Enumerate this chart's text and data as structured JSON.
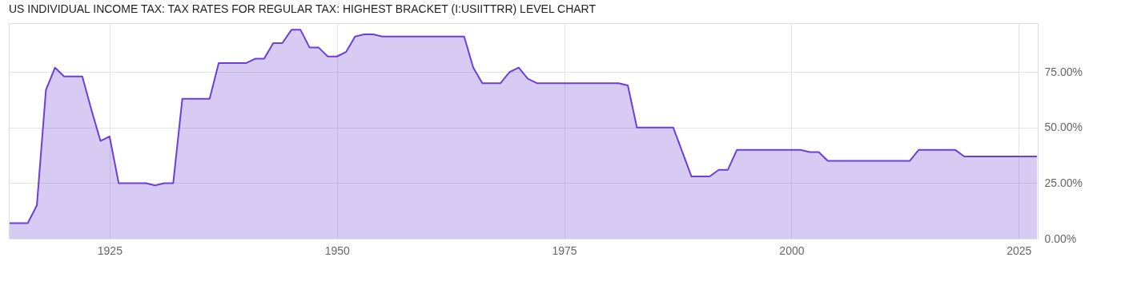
{
  "chart_data": {
    "type": "area",
    "title": "US INDIVIDUAL INCOME TAX: TAX RATES FOR REGULAR TAX: HIGHEST BRACKET (I:USIITTRR) LEVEL CHART",
    "x": [
      "1914",
      "1915",
      "1916",
      "1917",
      "1918",
      "1919",
      "1920",
      "1921",
      "1922",
      "1923",
      "1924",
      "1925",
      "1926",
      "1927",
      "1928",
      "1929",
      "1930",
      "1931",
      "1932",
      "1933",
      "1934",
      "1935",
      "1936",
      "1937",
      "1938",
      "1939",
      "1940",
      "1941",
      "1942",
      "1943",
      "1944",
      "1945",
      "1946",
      "1947",
      "1948",
      "1949",
      "1950",
      "1951",
      "1952",
      "1953",
      "1954",
      "1955",
      "1956",
      "1957",
      "1958",
      "1959",
      "1960",
      "1961",
      "1962",
      "1963",
      "1964",
      "1965",
      "1966",
      "1967",
      "1968",
      "1969",
      "1970",
      "1971",
      "1972",
      "1973",
      "1974",
      "1975",
      "1976",
      "1977",
      "1978",
      "1979",
      "1980",
      "1981",
      "1982",
      "1983",
      "1984",
      "1985",
      "1986",
      "1987",
      "1988",
      "1989",
      "1990",
      "1991",
      "1992",
      "1993",
      "1994",
      "1995",
      "1996",
      "1997",
      "1998",
      "1999",
      "2000",
      "2001",
      "2002",
      "2003",
      "2004",
      "2005",
      "2006",
      "2007",
      "2008",
      "2009",
      "2010",
      "2011",
      "2012",
      "2013",
      "2014",
      "2015",
      "2016",
      "2017",
      "2018",
      "2019",
      "2020",
      "2021",
      "2022",
      "2023",
      "2024",
      "2025",
      "2026",
      "2027"
    ],
    "series": [
      {
        "color": "#6c3fd6",
        "values": [
          7,
          7,
          7,
          15,
          67,
          77,
          73,
          73,
          73,
          58,
          44,
          46,
          25,
          25,
          25,
          25,
          24,
          25,
          25,
          63,
          63,
          63,
          63,
          79,
          79,
          79,
          79,
          81,
          81,
          88,
          88,
          94,
          94,
          86,
          86,
          82,
          82,
          84,
          91,
          92,
          92,
          91,
          91,
          91,
          91,
          91,
          91,
          91,
          91,
          91,
          91,
          77,
          70,
          70,
          70,
          75,
          77,
          72,
          70,
          70,
          70,
          70,
          70,
          70,
          70,
          70,
          70,
          70,
          69,
          50,
          50,
          50,
          50,
          50,
          39,
          28,
          28,
          28,
          31,
          31,
          40,
          40,
          40,
          40,
          40,
          40,
          40,
          40,
          39,
          39,
          35,
          35,
          35,
          35,
          35,
          35,
          35,
          35,
          35,
          35,
          40,
          40,
          40,
          40,
          40,
          37,
          37,
          37,
          37,
          37,
          37,
          37,
          37,
          37
        ]
      }
    ],
    "xlim": [
      "1913-12",
      "2027-02"
    ],
    "xticks": [
      "1925",
      "1950",
      "1975",
      "2000",
      "2025"
    ],
    "ylim": [
      0,
      97
    ],
    "yticks": [
      {
        "value": 0,
        "label": "0.00%"
      },
      {
        "value": 25,
        "label": "25.00%"
      },
      {
        "value": 50,
        "label": "50.00%"
      },
      {
        "value": 75,
        "label": "75.00%"
      }
    ],
    "grid": true
  }
}
